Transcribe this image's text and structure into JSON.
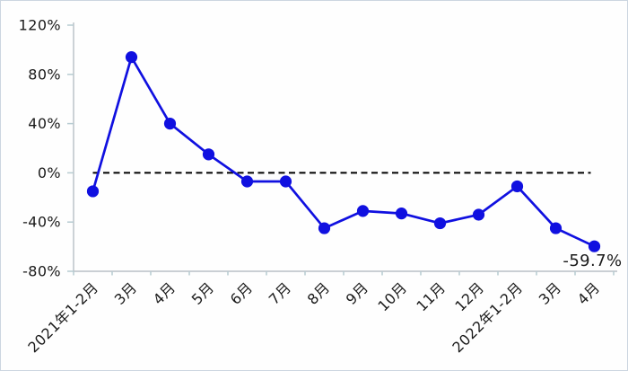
{
  "panel": {
    "background": "#fefefe",
    "border_color": "#ccd6e0"
  },
  "chart_data": {
    "type": "line",
    "categories": [
      "2021年1-2月",
      "3月",
      "4月",
      "5月",
      "6月",
      "7月",
      "8月",
      "9月",
      "10月",
      "11月",
      "12月",
      "2022年1-2月",
      "3月",
      "4月"
    ],
    "series": [
      {
        "values": [
          -15,
          94,
          40,
          15,
          -7,
          -7,
          -45,
          -31,
          -33,
          -41,
          -34,
          -11,
          -45,
          -59.7
        ],
        "color": "#1010e0",
        "marker": "circle"
      }
    ],
    "ylim": [
      -80,
      120
    ],
    "yticks": [
      120,
      80,
      40,
      0,
      -40,
      -80
    ],
    "ytick_labels": [
      "120%",
      "80%",
      "40%",
      "0%",
      "-40%",
      "-80%"
    ],
    "zero_line": {
      "style": "dashed",
      "color": "#000000"
    },
    "grid": false,
    "legend_position": "none",
    "annotations": [
      {
        "text": "-59.7%",
        "series": 0,
        "index": 13,
        "position": "below-right"
      }
    ],
    "axis_color": "#b8bfc6",
    "tick_color": "#b7cbd1",
    "label_color": "#1a1a1a"
  }
}
